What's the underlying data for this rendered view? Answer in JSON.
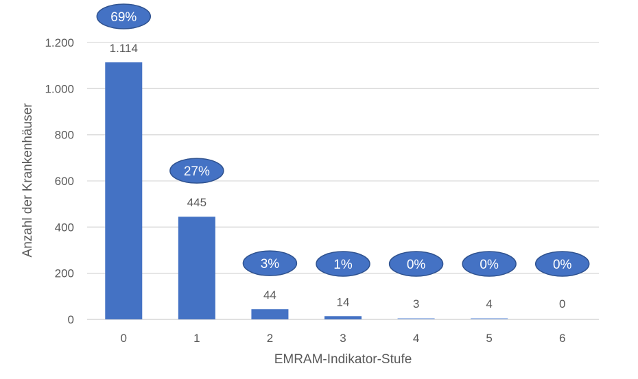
{
  "chart_data": {
    "type": "bar",
    "title": "",
    "xlabel": "EMRAM-Indikator-Stufe",
    "ylabel": "Anzahl der Krankenhäuser",
    "categories": [
      "0",
      "1",
      "2",
      "3",
      "4",
      "5",
      "6"
    ],
    "values": [
      1114,
      445,
      44,
      14,
      3,
      4,
      0
    ],
    "data_labels": [
      "1.114",
      "445",
      "44",
      "14",
      "3",
      "4",
      "0"
    ],
    "percent_labels": [
      "69%",
      "27%",
      "3%",
      "1%",
      "0%",
      "0%",
      "0%"
    ],
    "ylim": [
      0,
      1200
    ],
    "yticks": [
      0,
      200,
      400,
      600,
      800,
      1000,
      1200
    ],
    "ytick_labels": [
      "0",
      "200",
      "400",
      "600",
      "800",
      "1.000",
      "1.200"
    ],
    "grid": true,
    "legend": "none",
    "colors": {
      "bar": "#4472c4",
      "bar_light": "#a9c0e8",
      "ellipse_fill": "#4472c4",
      "ellipse_stroke": "#2f528f",
      "grid": "#d9d9d9",
      "text": "#595959"
    },
    "light_bar_indices": [
      4,
      5
    ]
  }
}
